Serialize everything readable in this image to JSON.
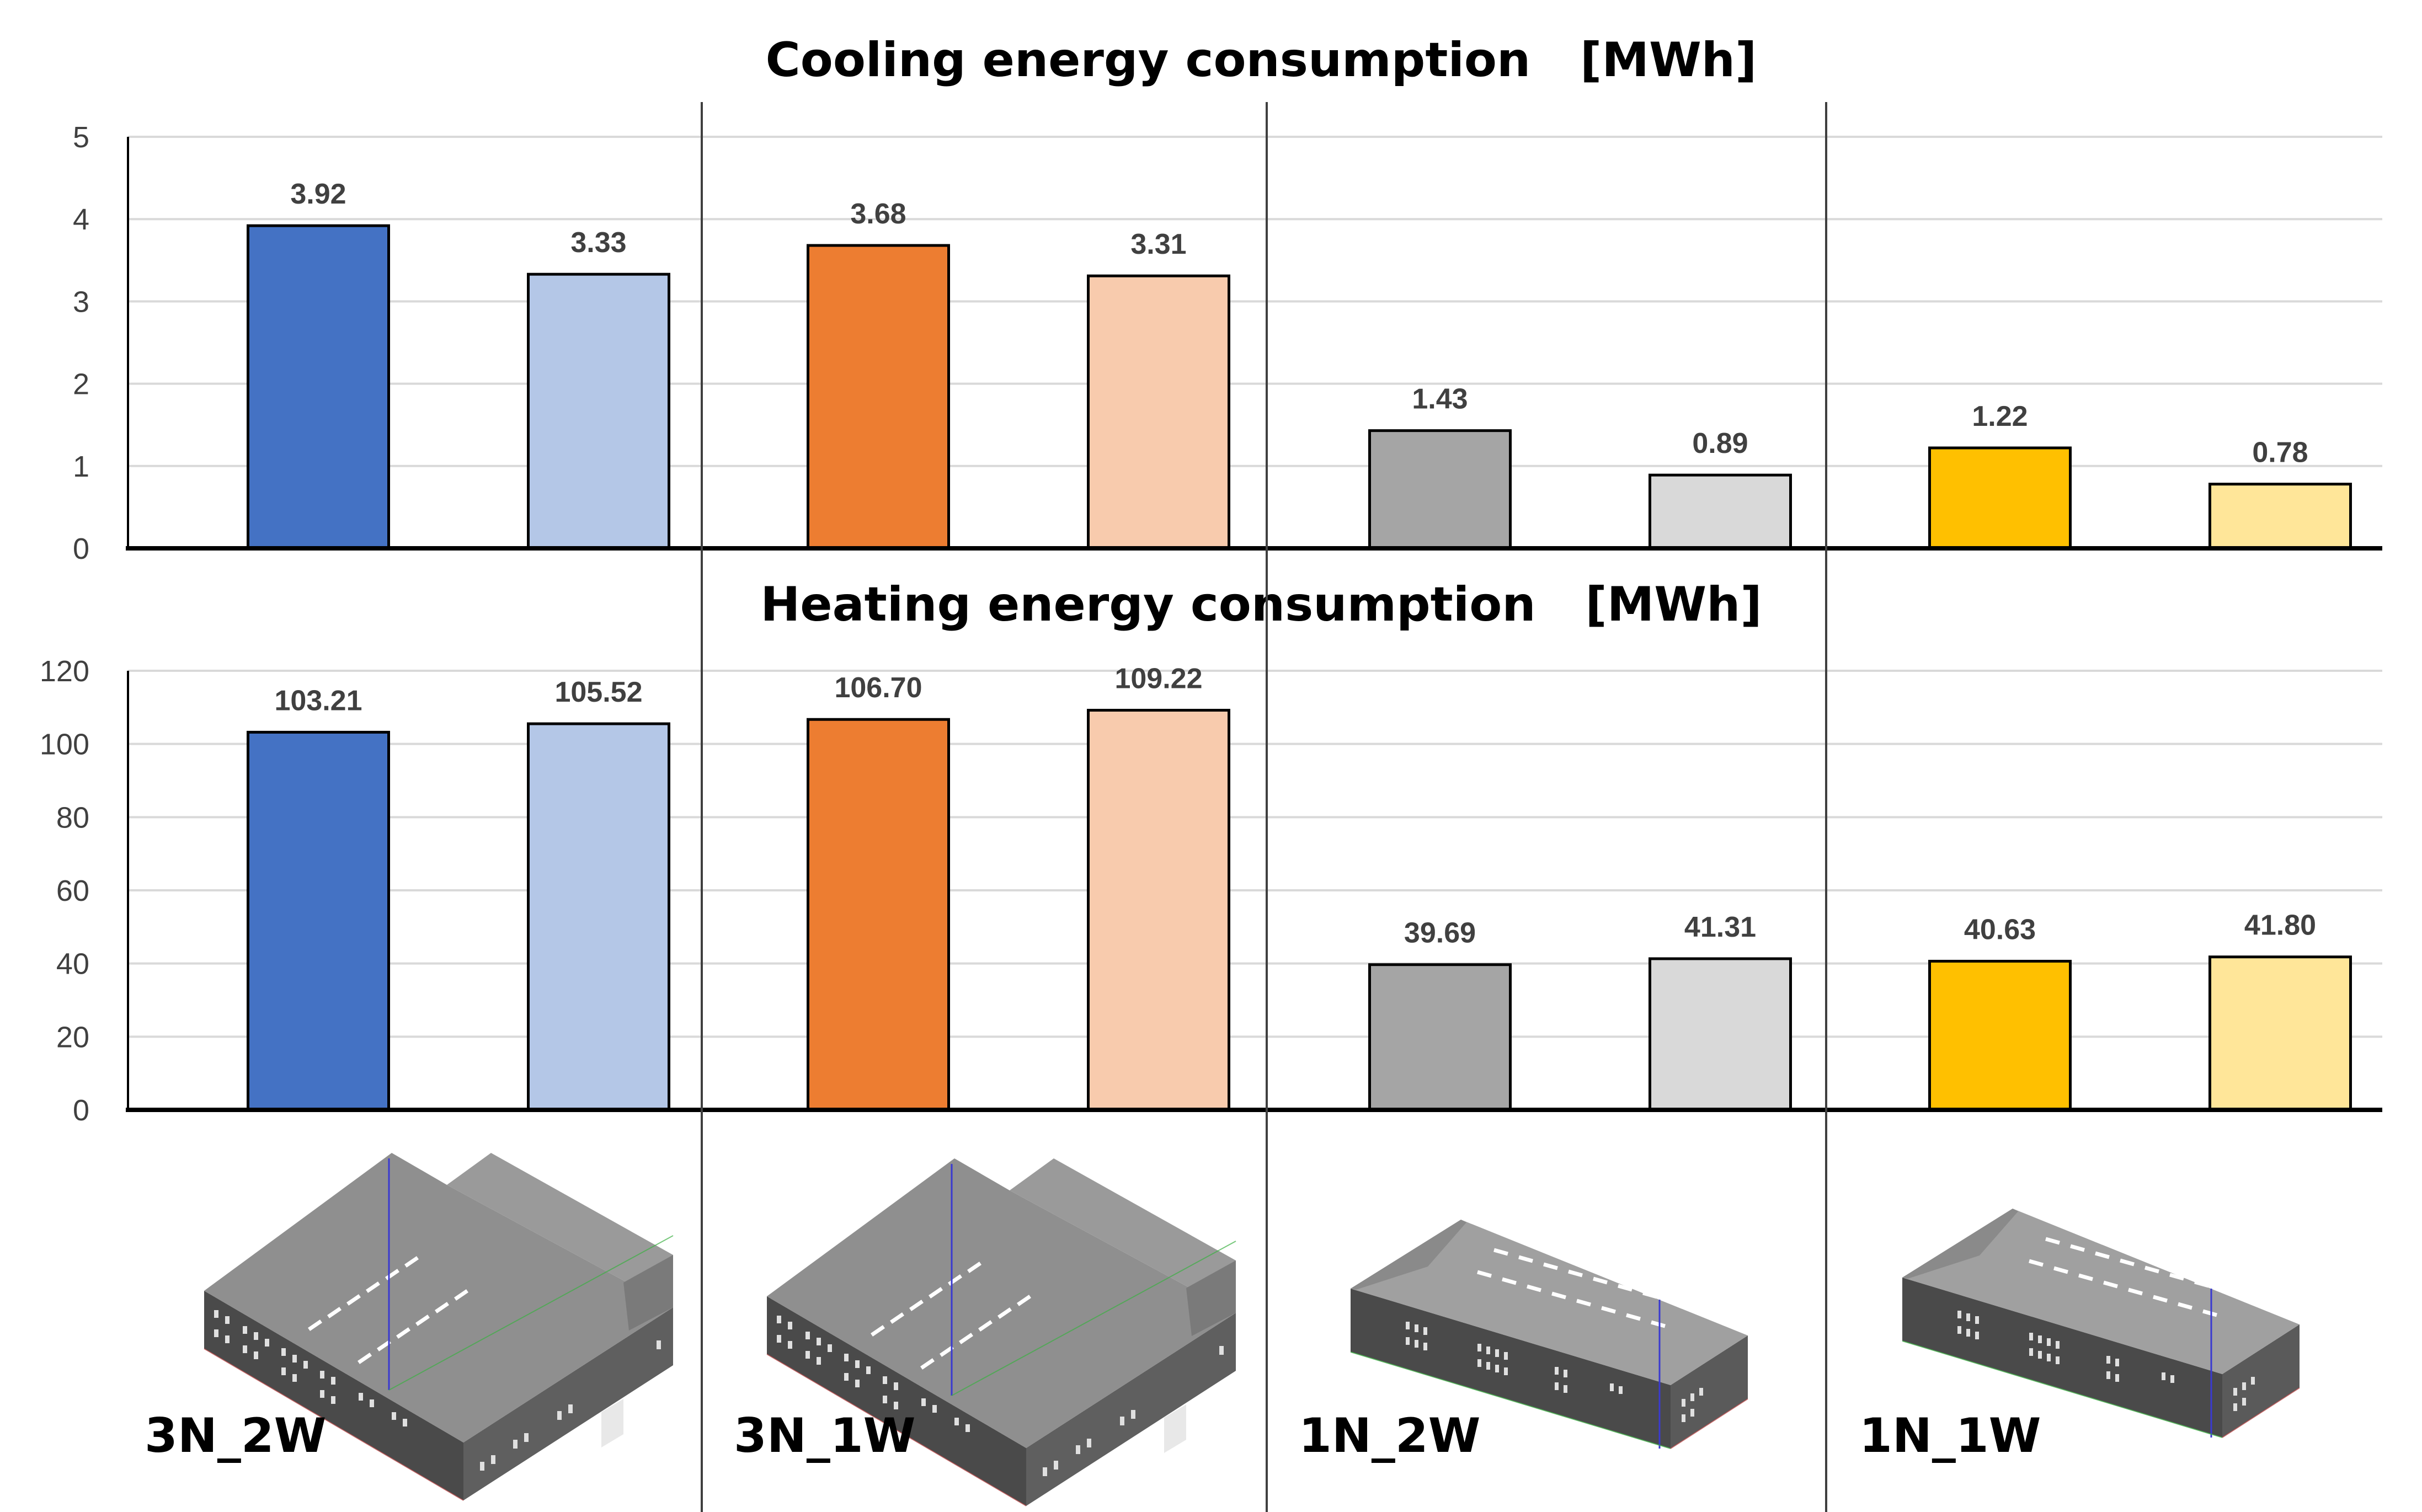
{
  "colors": {
    "3N_2W_A": "#4472C4",
    "3N_2W_B": "#B4C7E7",
    "3N_1W_A": "#ED7D31",
    "3N_1W_B": "#F8CBAD",
    "1N_2W_A": "#A5A5A5",
    "1N_2W_B": "#D9D9D9",
    "1N_1W_A": "#FFC000",
    "1N_1W_B": "#FFE699",
    "grid": "#D9D9D9",
    "axis": "#000000",
    "divider": "#404040"
  },
  "chart_data": [
    {
      "type": "bar",
      "title": "Cooling energy consumption   [MWh]",
      "groups": [
        "3N_2W",
        "3N_1W",
        "1N_2W",
        "1N_1W"
      ],
      "values": [
        3.92,
        3.33,
        3.68,
        3.31,
        1.43,
        0.89,
        1.22,
        0.78
      ],
      "value_labels": [
        "3.92",
        "3.33",
        "3.68",
        "3.31",
        "1.43",
        "0.89",
        "1.22",
        "0.78"
      ],
      "bar_colors": [
        "#4472C4",
        "#B4C7E7",
        "#ED7D31",
        "#F8CBAD",
        "#A5A5A5",
        "#D9D9D9",
        "#FFC000",
        "#FFE699"
      ],
      "ylim": [
        0,
        5
      ],
      "yticks": [
        "0",
        "1",
        "2",
        "3",
        "4",
        "5"
      ],
      "grid": true
    },
    {
      "type": "bar",
      "title": "Heating energy consumption   [MWh]",
      "groups": [
        "3N_2W",
        "3N_1W",
        "1N_2W",
        "1N_1W"
      ],
      "values": [
        103.21,
        105.52,
        106.7,
        109.22,
        39.69,
        41.31,
        40.63,
        41.8
      ],
      "value_labels": [
        "103.21",
        "105.52",
        "106.70",
        "109.22",
        "39.69",
        "41.31",
        "40.63",
        "41.80"
      ],
      "bar_colors": [
        "#4472C4",
        "#B4C7E7",
        "#ED7D31",
        "#F8CBAD",
        "#A5A5A5",
        "#D9D9D9",
        "#FFC000",
        "#FFE699"
      ],
      "ylim": [
        0,
        120
      ],
      "yticks": [
        "0",
        "20",
        "40",
        "60",
        "80",
        "100",
        "120"
      ],
      "grid": true
    }
  ],
  "buildings": {
    "labels": [
      "3N_2W",
      "3N_1W",
      "1N_2W",
      "1N_1W"
    ],
    "illustration_names": [
      "3N_2W building model",
      "3N_1W building model",
      "1N_2W building model",
      "1N_1W building model"
    ]
  }
}
